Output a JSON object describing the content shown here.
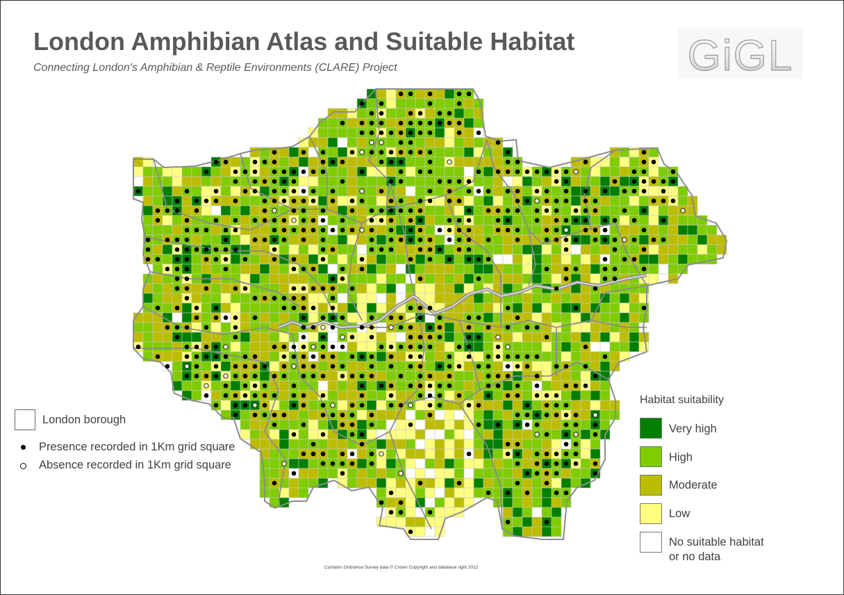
{
  "header": {
    "title": "London Amphibian Atlas and Suitable Habitat",
    "subtitle": "Connecting London's Amphibian & Reptile Environments (CLARE) Project",
    "logo_text": "GiGL"
  },
  "map": {
    "grid_unit": "1Km",
    "boundary_color": "#8c8c8c"
  },
  "legend_left": {
    "borough_label": "London borough",
    "presence_label": "Presence recorded in 1Km grid square",
    "absence_label": "Absence recorded in 1Km grid square"
  },
  "legend_right": {
    "title": "Habitat suitability",
    "classes": [
      {
        "key": "very_high",
        "label": "Very high",
        "color": "#007f00"
      },
      {
        "key": "high",
        "label": "High",
        "color": "#7fcc00"
      },
      {
        "key": "moderate",
        "label": "Moderate",
        "color": "#bdbd00"
      },
      {
        "key": "low",
        "label": "Low",
        "color": "#ffff80"
      },
      {
        "key": "none",
        "label": "No suitable habitat",
        "label2": "or no data",
        "color": "#ffffff"
      }
    ]
  },
  "credit": "Contains Ordnance Survey data © Crown Copyright and database right 2012"
}
